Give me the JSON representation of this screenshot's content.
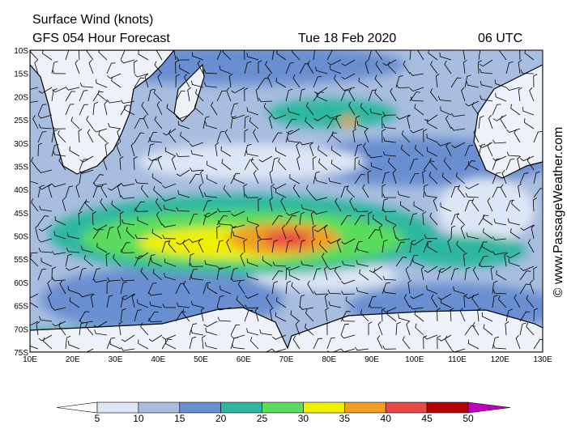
{
  "header": {
    "title": "Surface Wind (knots)",
    "forecast": "GFS 054 Hour Forecast",
    "date": "Tue 18 Feb 2020",
    "time": "06 UTC"
  },
  "map": {
    "lat_labels": [
      "10S",
      "15S",
      "20S",
      "25S",
      "30S",
      "35S",
      "40S",
      "45S",
      "50S",
      "55S",
      "60S",
      "65S",
      "70S",
      "75S"
    ],
    "lon_labels": [
      "10E",
      "20E",
      "30E",
      "40E",
      "50E",
      "60E",
      "70E",
      "80E",
      "90E",
      "100E",
      "110E",
      "120E",
      "130E"
    ]
  },
  "colorbar": {
    "labels": [
      "5",
      "10",
      "15",
      "20",
      "25",
      "30",
      "35",
      "40",
      "45",
      "50"
    ],
    "colors": [
      "#ffffff",
      "#dde6f5",
      "#a8bde0",
      "#6a8fd0",
      "#2db7a0",
      "#5cdc5c",
      "#f0f000",
      "#f0a020",
      "#e84848",
      "#b40000",
      "#c000c0"
    ]
  },
  "credit": "© www.PassageWeather.com"
}
